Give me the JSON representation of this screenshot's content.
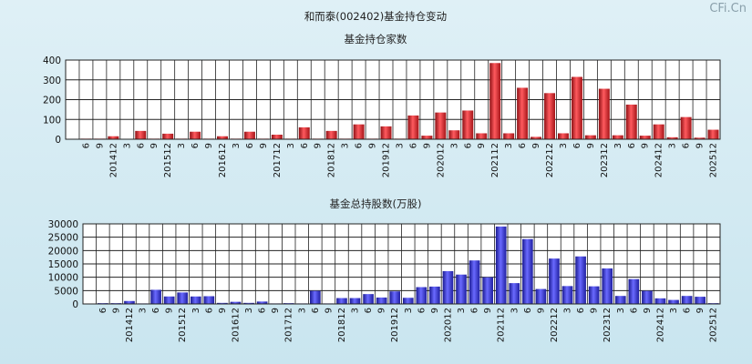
{
  "page_title": "和而泰(002402)基金持仓变动",
  "watermark": "CFi.Cn",
  "colors": {
    "red_bar": "#e0333a",
    "blue_bar": "#3d3ddc",
    "grid": "#222222",
    "background": "#d3ebf3"
  },
  "chart_data": [
    {
      "type": "bar",
      "title": "基金持仓家数",
      "ylim": [
        0,
        400
      ],
      "yticks": [
        0,
        100,
        200,
        300,
        400
      ],
      "grid": true,
      "categories": [
        "",
        "6",
        "9",
        "201412",
        "3",
        "6",
        "9",
        "201512",
        "3",
        "6",
        "9",
        "201612",
        "3",
        "6",
        "9",
        "201712",
        "3",
        "6",
        "9",
        "201812",
        "3",
        "6",
        "9",
        "201912",
        "3",
        "6",
        "9",
        "202012",
        "3",
        "6",
        "9",
        "202112",
        "3",
        "6",
        "9",
        "202212",
        "3",
        "6",
        "9",
        "202312",
        "3",
        "6",
        "9",
        "202412",
        "3",
        "6",
        "9",
        "202512"
      ],
      "values": [
        0,
        3,
        3,
        15,
        2,
        42,
        3,
        28,
        3,
        38,
        3,
        15,
        3,
        38,
        3,
        23,
        3,
        60,
        3,
        42,
        3,
        75,
        3,
        65,
        3,
        120,
        18,
        135,
        45,
        145,
        30,
        385,
        30,
        260,
        12,
        233,
        30,
        315,
        20,
        255,
        20,
        175,
        18,
        75,
        10,
        112,
        8,
        48
      ]
    },
    {
      "type": "bar",
      "title": "基金总持股数(万股)",
      "ylim": [
        0,
        30000
      ],
      "yticks": [
        0,
        5000,
        10000,
        15000,
        20000,
        25000,
        30000
      ],
      "grid": true,
      "categories": [
        "",
        "6",
        "9",
        "201412",
        "3",
        "6",
        "9",
        "201512",
        "3",
        "6",
        "9",
        "201612",
        "3",
        "6",
        "9",
        "201712",
        "3",
        "6",
        "9",
        "201812",
        "3",
        "6",
        "9",
        "201912",
        "3",
        "6",
        "9",
        "202012",
        "3",
        "6",
        "9",
        "202112",
        "3",
        "6",
        "9",
        "202212",
        "3",
        "6",
        "9",
        "202312",
        "3",
        "6",
        "9",
        "202412",
        "3",
        "6",
        "9",
        "202512"
      ],
      "values": [
        0,
        300,
        300,
        1100,
        200,
        5300,
        2800,
        4300,
        2800,
        2900,
        400,
        800,
        400,
        900,
        200,
        300,
        200,
        4900,
        200,
        2200,
        2200,
        3700,
        2400,
        4700,
        2300,
        6300,
        6500,
        12300,
        11000,
        16300,
        10000,
        29000,
        7800,
        24300,
        5600,
        17000,
        6700,
        17800,
        6600,
        13300,
        3000,
        9300,
        4900,
        2100,
        1500,
        3000,
        2700,
        300
      ]
    }
  ]
}
